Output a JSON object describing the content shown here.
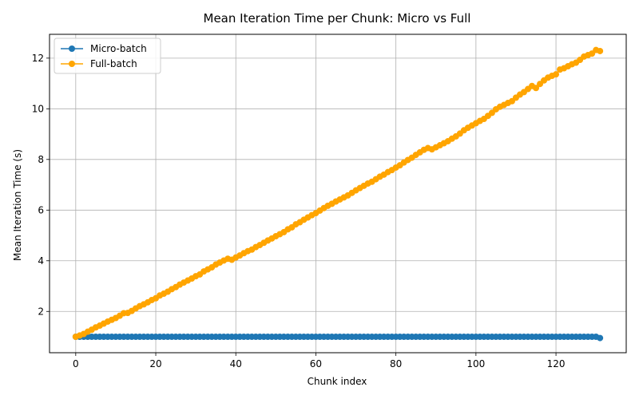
{
  "chart_data": {
    "type": "line",
    "title": "Mean Iteration Time per Chunk: Micro vs Full",
    "xlabel": "Chunk index",
    "ylabel": "Mean Iteration Time (s)",
    "xlim": [
      -6.55,
      137.55
    ],
    "ylim": [
      0.37,
      12.94
    ],
    "xticks": [
      0,
      20,
      40,
      60,
      80,
      100,
      120
    ],
    "yticks": [
      2,
      4,
      6,
      8,
      10,
      12
    ],
    "grid": true,
    "legend_position": "top-left",
    "series": [
      {
        "name": "Micro-batch",
        "color": "#1f77b4",
        "x": [
          0,
          1,
          2,
          3,
          4,
          5,
          6,
          7,
          8,
          9,
          10,
          11,
          12,
          13,
          14,
          15,
          16,
          17,
          18,
          19,
          20,
          21,
          22,
          23,
          24,
          25,
          26,
          27,
          28,
          29,
          30,
          31,
          32,
          33,
          34,
          35,
          36,
          37,
          38,
          39,
          40,
          41,
          42,
          43,
          44,
          45,
          46,
          47,
          48,
          49,
          50,
          51,
          52,
          53,
          54,
          55,
          56,
          57,
          58,
          59,
          60,
          61,
          62,
          63,
          64,
          65,
          66,
          67,
          68,
          69,
          70,
          71,
          72,
          73,
          74,
          75,
          76,
          77,
          78,
          79,
          80,
          81,
          82,
          83,
          84,
          85,
          86,
          87,
          88,
          89,
          90,
          91,
          92,
          93,
          94,
          95,
          96,
          97,
          98,
          99,
          100,
          101,
          102,
          103,
          104,
          105,
          106,
          107,
          108,
          109,
          110,
          111,
          112,
          113,
          114,
          115,
          116,
          117,
          118,
          119,
          120,
          121,
          122,
          123,
          124,
          125,
          126,
          127,
          128,
          129,
          130,
          131
        ],
        "y": [
          1.0,
          1.0,
          1.0,
          1.0,
          1.0,
          1.0,
          1.0,
          1.0,
          1.0,
          1.0,
          1.0,
          1.0,
          1.0,
          1.0,
          1.0,
          1.0,
          1.0,
          1.0,
          1.0,
          1.0,
          1.0,
          1.0,
          1.0,
          1.0,
          1.0,
          1.0,
          1.0,
          1.0,
          1.0,
          1.0,
          1.0,
          1.0,
          1.0,
          1.0,
          1.0,
          1.0,
          1.0,
          1.0,
          1.0,
          1.0,
          1.0,
          1.0,
          1.0,
          1.0,
          1.0,
          1.0,
          1.0,
          1.0,
          1.0,
          1.0,
          1.0,
          1.0,
          1.0,
          1.0,
          1.0,
          1.0,
          1.0,
          1.0,
          1.0,
          1.0,
          1.0,
          1.0,
          1.0,
          1.0,
          1.0,
          1.0,
          1.0,
          1.0,
          1.0,
          1.0,
          1.0,
          1.0,
          1.0,
          1.0,
          1.0,
          1.0,
          1.0,
          1.0,
          1.0,
          1.0,
          1.0,
          1.0,
          1.0,
          1.0,
          1.0,
          1.0,
          1.0,
          1.0,
          1.0,
          1.0,
          1.0,
          1.0,
          1.0,
          1.0,
          1.0,
          1.0,
          1.0,
          1.0,
          1.0,
          1.0,
          1.0,
          1.0,
          1.0,
          1.0,
          1.0,
          1.0,
          1.0,
          1.0,
          1.0,
          1.0,
          1.0,
          1.0,
          1.0,
          1.0,
          1.0,
          1.0,
          1.0,
          1.0,
          1.0,
          1.0,
          1.0,
          1.0,
          1.0,
          1.0,
          1.0,
          1.0,
          1.0,
          1.0,
          1.0,
          1.0,
          1.0,
          0.95
        ]
      },
      {
        "name": "Full-batch",
        "color": "#ffa500",
        "x": [
          0,
          1,
          2,
          3,
          4,
          5,
          6,
          7,
          8,
          9,
          10,
          11,
          12,
          13,
          14,
          15,
          16,
          17,
          18,
          19,
          20,
          21,
          22,
          23,
          24,
          25,
          26,
          27,
          28,
          29,
          30,
          31,
          32,
          33,
          34,
          35,
          36,
          37,
          38,
          39,
          40,
          41,
          42,
          43,
          44,
          45,
          46,
          47,
          48,
          49,
          50,
          51,
          52,
          53,
          54,
          55,
          56,
          57,
          58,
          59,
          60,
          61,
          62,
          63,
          64,
          65,
          66,
          67,
          68,
          69,
          70,
          71,
          72,
          73,
          74,
          75,
          76,
          77,
          78,
          79,
          80,
          81,
          82,
          83,
          84,
          85,
          86,
          87,
          88,
          89,
          90,
          91,
          92,
          93,
          94,
          95,
          96,
          97,
          98,
          99,
          100,
          101,
          102,
          103,
          104,
          105,
          106,
          107,
          108,
          109,
          110,
          111,
          112,
          113,
          114,
          115,
          116,
          117,
          118,
          119,
          120,
          121,
          122,
          123,
          124,
          125,
          126,
          127,
          128,
          129,
          130,
          131
        ],
        "y": [
          1.0,
          1.05,
          1.11,
          1.2,
          1.28,
          1.37,
          1.44,
          1.52,
          1.6,
          1.67,
          1.74,
          1.83,
          1.93,
          1.94,
          2.02,
          2.12,
          2.21,
          2.28,
          2.36,
          2.45,
          2.52,
          2.63,
          2.7,
          2.78,
          2.88,
          2.96,
          3.06,
          3.14,
          3.22,
          3.3,
          3.39,
          3.46,
          3.58,
          3.66,
          3.74,
          3.85,
          3.93,
          4.01,
          4.08,
          4.04,
          4.13,
          4.21,
          4.3,
          4.38,
          4.44,
          4.54,
          4.62,
          4.71,
          4.8,
          4.88,
          4.97,
          5.05,
          5.13,
          5.24,
          5.32,
          5.44,
          5.52,
          5.62,
          5.71,
          5.8,
          5.88,
          5.98,
          6.08,
          6.17,
          6.25,
          6.34,
          6.42,
          6.5,
          6.58,
          6.68,
          6.78,
          6.87,
          6.96,
          7.05,
          7.12,
          7.22,
          7.32,
          7.4,
          7.5,
          7.58,
          7.68,
          7.77,
          7.88,
          7.98,
          8.07,
          8.18,
          8.28,
          8.38,
          8.45,
          8.4,
          8.48,
          8.56,
          8.64,
          8.72,
          8.82,
          8.91,
          9.02,
          9.15,
          9.25,
          9.34,
          9.43,
          9.52,
          9.6,
          9.72,
          9.84,
          9.98,
          10.08,
          10.15,
          10.23,
          10.3,
          10.44,
          10.56,
          10.66,
          10.78,
          10.9,
          10.82,
          10.98,
          11.12,
          11.23,
          11.3,
          11.36,
          11.55,
          11.6,
          11.68,
          11.76,
          11.82,
          11.93,
          12.06,
          12.12,
          12.18,
          12.32,
          12.28
        ]
      }
    ]
  }
}
